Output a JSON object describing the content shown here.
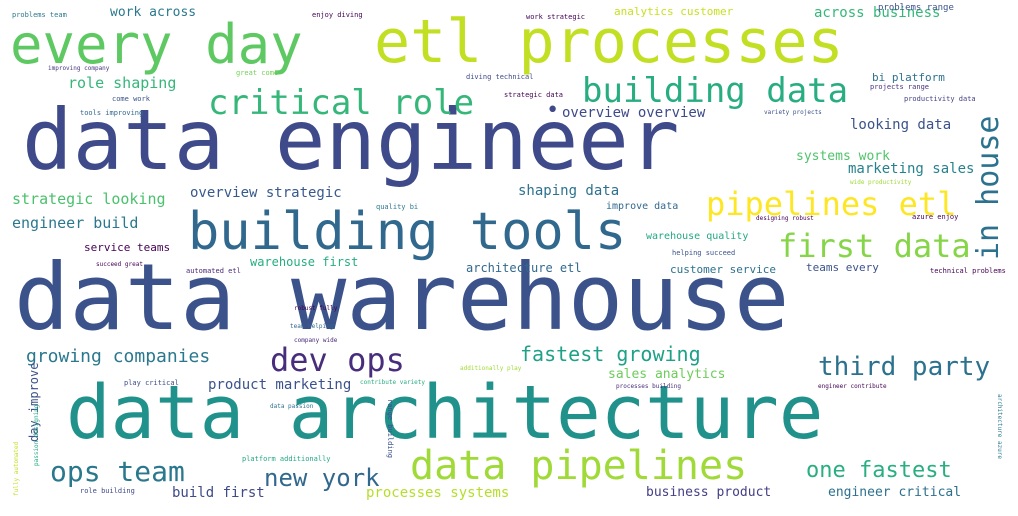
{
  "words": [
    {
      "key": "data-warehouse",
      "text": "data warehouse",
      "color": "#3b528b"
    },
    {
      "key": "data-engineer",
      "text": "data engineer",
      "color": "#3e4a89"
    },
    {
      "key": "data-architecture",
      "text": "data architecture",
      "color": "#21918c"
    },
    {
      "key": "etl-processes",
      "text": "etl processes",
      "color": "#c2df23"
    },
    {
      "key": "every-day",
      "text": "every day",
      "color": "#5ec962"
    },
    {
      "key": "building-tools",
      "text": "building tools",
      "color": "#31688e"
    },
    {
      "key": "data-pipelines",
      "text": "data pipelines",
      "color": "#a0da39"
    },
    {
      "key": "building-data",
      "text": "building data",
      "color": "#27ad81"
    },
    {
      "key": "critical-role",
      "text": "critical role",
      "color": "#35b779"
    },
    {
      "key": "pipelines-etl",
      "text": "pipelines etl",
      "color": "#fde725"
    },
    {
      "key": "first-data",
      "text": "first data",
      "color": "#86d549"
    },
    {
      "key": "in-house",
      "text": "in house",
      "color": "#2c728e"
    },
    {
      "key": "dev-ops",
      "text": "dev ops",
      "color": "#472d7b"
    },
    {
      "key": "third-party",
      "text": "third party",
      "color": "#2c728e"
    },
    {
      "key": "ops-team",
      "text": "ops team",
      "color": "#2a788e"
    },
    {
      "key": "new-york",
      "text": "new york",
      "color": "#31688e"
    },
    {
      "key": "one-fastest",
      "text": "one fastest",
      "color": "#29af7f"
    },
    {
      "key": "fastest-growing",
      "text": "fastest growing",
      "color": "#1fa187"
    },
    {
      "key": "growing-companies",
      "text": "growing companies",
      "color": "#2a788e"
    },
    {
      "key": "role-shaping",
      "text": "role shaping",
      "color": "#35b779"
    },
    {
      "key": "overview-overview",
      "text": "overview overview",
      "color": "#3e4a89"
    },
    {
      "key": "overview-strategic",
      "text": "overview strategic",
      "color": "#38598c"
    },
    {
      "key": "strategic-looking",
      "text": "strategic looking",
      "color": "#4ac16d"
    },
    {
      "key": "engineer-build",
      "text": "engineer build",
      "color": "#2a788e"
    },
    {
      "key": "looking-data",
      "text": "looking data",
      "color": "#3b528b"
    },
    {
      "key": "marketing-sales",
      "text": "marketing sales",
      "color": "#26828e"
    },
    {
      "key": "systems-work",
      "text": "systems work",
      "color": "#50c46a"
    },
    {
      "key": "shaping-data",
      "text": "shaping data",
      "color": "#2c728e"
    },
    {
      "key": "product-marketing",
      "text": "product marketing",
      "color": "#3b528b"
    },
    {
      "key": "sales-analytics",
      "text": "sales analytics",
      "color": "#6ccd5a"
    },
    {
      "key": "build-first",
      "text": "build first",
      "color": "#3e4a89"
    },
    {
      "key": "processes-systems",
      "text": "processes systems",
      "color": "#b5de2b"
    },
    {
      "key": "business-product",
      "text": "business product",
      "color": "#433e85"
    },
    {
      "key": "engineer-critical",
      "text": "engineer critical",
      "color": "#2d708e"
    },
    {
      "key": "architecture-etl",
      "text": "architecture etl",
      "color": "#31688e"
    },
    {
      "key": "warehouse-first",
      "text": "warehouse first",
      "color": "#26ad81"
    },
    {
      "key": "customer-service",
      "text": "customer service",
      "color": "#2c728e"
    },
    {
      "key": "across-business",
      "text": "across business",
      "color": "#35b779"
    },
    {
      "key": "work-across",
      "text": "work across",
      "color": "#2a788e"
    },
    {
      "key": "analytics-customer",
      "text": "analytics customer",
      "color": "#c8e020"
    },
    {
      "key": "problems-range",
      "text": "problems range",
      "color": "#3b528b"
    },
    {
      "key": "bi-platform",
      "text": "bi platform",
      "color": "#2c728e"
    },
    {
      "key": "service-teams",
      "text": "service teams",
      "color": "#440154"
    },
    {
      "key": "teams-every",
      "text": "teams every",
      "color": "#3b528b"
    },
    {
      "key": "warehouse-quality",
      "text": "warehouse quality",
      "color": "#22a884"
    },
    {
      "key": "improve-data",
      "text": "improve data",
      "color": "#31688e"
    },
    {
      "key": "day-improve",
      "text": "day improve",
      "color": "#3b528b"
    },
    {
      "key": "problems-team",
      "text": "problems team",
      "color": "#2a788e"
    },
    {
      "key": "enjoy-diving",
      "text": "enjoy diving",
      "color": "#440154"
    },
    {
      "key": "work-strategic",
      "text": "work strategic",
      "color": "#440154"
    },
    {
      "key": "improving-company",
      "text": "improving company",
      "color": "#46337e"
    },
    {
      "key": "great-come",
      "text": "great come",
      "color": "#73d056"
    },
    {
      "key": "come-work",
      "text": "come work",
      "color": "#3b528b"
    },
    {
      "key": "tools-improving",
      "text": "tools improving",
      "color": "#31688e"
    },
    {
      "key": "diving-technical",
      "text": "diving technical",
      "color": "#3e4a89"
    },
    {
      "key": "strategic-data",
      "text": "strategic data",
      "color": "#440154"
    },
    {
      "key": "projects-range",
      "text": "projects range",
      "color": "#46337e"
    },
    {
      "key": "productivity-data",
      "text": "productivity data",
      "color": "#433e85"
    },
    {
      "key": "variety-projects",
      "text": "variety projects",
      "color": "#3b528b"
    },
    {
      "key": "wide-productivity",
      "text": "wide productivity",
      "color": "#a0da39"
    },
    {
      "key": "designing-robust",
      "text": "designing robust",
      "color": "#440154"
    },
    {
      "key": "azure-enjoy",
      "text": "azure enjoy",
      "color": "#440154"
    },
    {
      "key": "quality-bi",
      "text": "quality bi",
      "color": "#2a788e"
    },
    {
      "key": "helping-succeed",
      "text": "helping succeed",
      "color": "#3b528b"
    },
    {
      "key": "succeed-great",
      "text": "succeed great",
      "color": "#440154"
    },
    {
      "key": "automated-etl",
      "text": "automated etl",
      "color": "#482878"
    },
    {
      "key": "technical-problems",
      "text": "technical problems",
      "color": "#440154"
    },
    {
      "key": "robust-fully",
      "text": "robust fully",
      "color": "#440154"
    },
    {
      "key": "team-helping",
      "text": "team helping",
      "color": "#31688e"
    },
    {
      "key": "company-wide",
      "text": "company wide",
      "color": "#482878"
    },
    {
      "key": "additionally-play",
      "text": "additionally play",
      "color": "#a0da39"
    },
    {
      "key": "play-critical",
      "text": "play critical",
      "color": "#3e4a89"
    },
    {
      "key": "contribute-variety",
      "text": "contribute variety",
      "color": "#27ad81"
    },
    {
      "key": "processes-building",
      "text": "processes building",
      "color": "#472d7b"
    },
    {
      "key": "engineer-contribute",
      "text": "engineer contribute",
      "color": "#440154"
    },
    {
      "key": "architecture-azure",
      "text": "architecture azure",
      "color": "#2a788e"
    },
    {
      "key": "data-passion",
      "text": "data passion",
      "color": "#2c728e"
    },
    {
      "key": "platform-additionally",
      "text": "platform additionally",
      "color": "#22a884"
    },
    {
      "key": "role-building",
      "text": "role building",
      "color": "#3e4a89"
    },
    {
      "key": "passion-designing",
      "text": "passion designing",
      "color": "#22a884"
    },
    {
      "key": "fully-automated",
      "text": "fully automated",
      "color": "#c2df23"
    },
    {
      "key": "range-building",
      "text": "range building",
      "color": "#3b528b"
    },
    {
      "key": "dot",
      "text": "•",
      "color": "#3e4a89"
    }
  ]
}
